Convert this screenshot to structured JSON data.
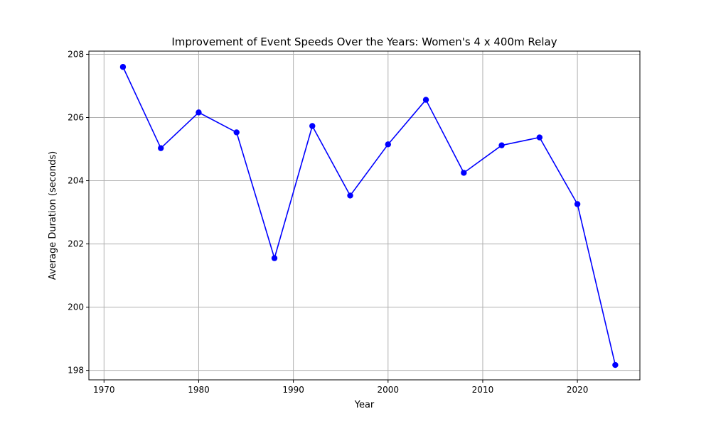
{
  "chart_data": {
    "type": "line",
    "title": "Improvement of Event Speeds Over the Years: Women's 4 x 400m Relay",
    "xlabel": "Year",
    "ylabel": "Average Duration (seconds)",
    "xlim": [
      1968.4,
      2026.6
    ],
    "ylim": [
      197.7,
      208.1
    ],
    "xticks": [
      1970,
      1980,
      1990,
      2000,
      2010,
      2020
    ],
    "yticks": [
      198,
      200,
      202,
      204,
      206,
      208
    ],
    "grid": true,
    "legend": "none",
    "x": [
      1972,
      1976,
      1980,
      1984,
      1988,
      1992,
      1996,
      2000,
      2004,
      2008,
      2012,
      2016,
      2020,
      2024
    ],
    "series": [
      {
        "color": "#0000ff",
        "marker": "circle",
        "values": [
          207.6,
          205.03,
          206.16,
          205.53,
          201.55,
          205.73,
          203.53,
          205.15,
          206.56,
          204.25,
          205.12,
          205.37,
          203.26,
          198.17
        ]
      }
    ]
  }
}
